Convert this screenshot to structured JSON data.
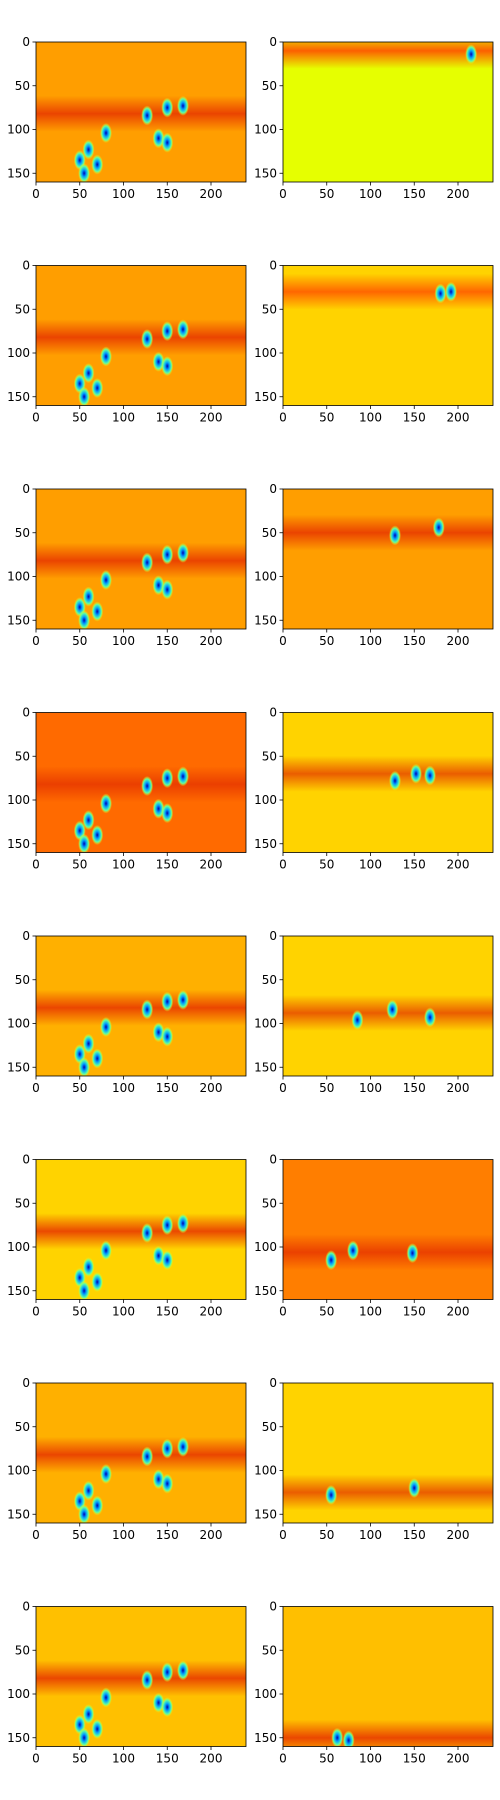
{
  "figure": {
    "background": "#ffffff",
    "layout": {
      "rows": 8,
      "cols": 2
    }
  },
  "chart_data": [
    {
      "type": "heatmap",
      "row": 0,
      "col": 0,
      "x_range": [
        0,
        240
      ],
      "y_range": [
        0,
        160
      ],
      "y_inverted": true,
      "xticks": [
        0,
        50,
        100,
        150,
        200
      ],
      "yticks": [
        0,
        50,
        100,
        150
      ],
      "background_color": "#ff9e00",
      "band": {
        "y_center": 82,
        "color": "#e83a00"
      },
      "blobs": [
        [
          127,
          84
        ],
        [
          150,
          75
        ],
        [
          168,
          73
        ],
        [
          140,
          110
        ],
        [
          150,
          115
        ],
        [
          80,
          104
        ],
        [
          60,
          123
        ],
        [
          50,
          135
        ],
        [
          70,
          140
        ],
        [
          55,
          150
        ]
      ]
    },
    {
      "type": "heatmap",
      "row": 0,
      "col": 1,
      "x_range": [
        0,
        240
      ],
      "y_range": [
        0,
        160
      ],
      "y_inverted": true,
      "xticks": [
        0,
        50,
        100,
        150,
        200
      ],
      "yticks": [
        0,
        50,
        100,
        150
      ],
      "background_color": "#e6ff00",
      "band": {
        "y_center": 10,
        "color": "#ff4e00"
      },
      "blobs": [
        [
          215,
          14
        ]
      ]
    },
    {
      "type": "heatmap",
      "row": 1,
      "col": 0,
      "x_range": [
        0,
        240
      ],
      "y_range": [
        0,
        160
      ],
      "y_inverted": true,
      "xticks": [
        0,
        50,
        100,
        150,
        200
      ],
      "yticks": [
        0,
        50,
        100,
        150
      ],
      "background_color": "#ff9e00",
      "band": {
        "y_center": 82,
        "color": "#e83a00"
      },
      "blobs": [
        [
          127,
          84
        ],
        [
          150,
          75
        ],
        [
          168,
          73
        ],
        [
          140,
          110
        ],
        [
          150,
          115
        ],
        [
          80,
          104
        ],
        [
          60,
          123
        ],
        [
          50,
          135
        ],
        [
          70,
          140
        ],
        [
          55,
          150
        ]
      ]
    },
    {
      "type": "heatmap",
      "row": 1,
      "col": 1,
      "x_range": [
        0,
        240
      ],
      "y_range": [
        0,
        160
      ],
      "y_inverted": true,
      "xticks": [
        0,
        50,
        100,
        150,
        200
      ],
      "yticks": [
        0,
        50,
        100,
        150
      ],
      "background_color": "#ffd300",
      "band": {
        "y_center": 30,
        "color": "#ff5a00"
      },
      "blobs": [
        [
          180,
          32
        ],
        [
          192,
          30
        ]
      ]
    },
    {
      "type": "heatmap",
      "row": 2,
      "col": 0,
      "x_range": [
        0,
        240
      ],
      "y_range": [
        0,
        160
      ],
      "y_inverted": true,
      "xticks": [
        0,
        50,
        100,
        150,
        200
      ],
      "yticks": [
        0,
        50,
        100,
        150
      ],
      "background_color": "#ff9e00",
      "band": {
        "y_center": 82,
        "color": "#e83a00"
      },
      "blobs": [
        [
          127,
          84
        ],
        [
          150,
          75
        ],
        [
          168,
          73
        ],
        [
          140,
          110
        ],
        [
          150,
          115
        ],
        [
          80,
          104
        ],
        [
          60,
          123
        ],
        [
          50,
          135
        ],
        [
          70,
          140
        ],
        [
          55,
          150
        ]
      ]
    },
    {
      "type": "heatmap",
      "row": 2,
      "col": 1,
      "x_range": [
        0,
        240
      ],
      "y_range": [
        0,
        160
      ],
      "y_inverted": true,
      "xticks": [
        0,
        50,
        100,
        150,
        200
      ],
      "yticks": [
        0,
        50,
        100,
        150
      ],
      "background_color": "#ff9e00",
      "band": {
        "y_center": 50,
        "color": "#e83a00"
      },
      "blobs": [
        [
          178,
          44
        ],
        [
          128,
          53
        ]
      ]
    },
    {
      "type": "heatmap",
      "row": 3,
      "col": 0,
      "x_range": [
        0,
        240
      ],
      "y_range": [
        0,
        160
      ],
      "y_inverted": true,
      "xticks": [
        0,
        50,
        100,
        150,
        200
      ],
      "yticks": [
        0,
        50,
        100,
        150
      ],
      "background_color": "#ff6a00",
      "band": {
        "y_center": 82,
        "color": "#e83a00"
      },
      "blobs": [
        [
          127,
          84
        ],
        [
          150,
          75
        ],
        [
          168,
          73
        ],
        [
          140,
          110
        ],
        [
          150,
          115
        ],
        [
          80,
          104
        ],
        [
          60,
          123
        ],
        [
          50,
          135
        ],
        [
          70,
          140
        ],
        [
          55,
          150
        ]
      ]
    },
    {
      "type": "heatmap",
      "row": 3,
      "col": 1,
      "x_range": [
        0,
        240
      ],
      "y_range": [
        0,
        160
      ],
      "y_inverted": true,
      "xticks": [
        0,
        50,
        100,
        150,
        200
      ],
      "yticks": [
        0,
        50,
        100,
        150
      ],
      "background_color": "#ffd300",
      "band": {
        "y_center": 70,
        "color": "#e85000"
      },
      "blobs": [
        [
          152,
          70
        ],
        [
          168,
          72
        ],
        [
          128,
          78
        ]
      ]
    },
    {
      "type": "heatmap",
      "row": 4,
      "col": 0,
      "x_range": [
        0,
        240
      ],
      "y_range": [
        0,
        160
      ],
      "y_inverted": true,
      "xticks": [
        0,
        50,
        100,
        150,
        200
      ],
      "yticks": [
        0,
        50,
        100,
        150
      ],
      "background_color": "#ffb000",
      "band": {
        "y_center": 82,
        "color": "#e83a00"
      },
      "blobs": [
        [
          127,
          84
        ],
        [
          150,
          75
        ],
        [
          168,
          73
        ],
        [
          140,
          110
        ],
        [
          150,
          115
        ],
        [
          80,
          104
        ],
        [
          60,
          123
        ],
        [
          50,
          135
        ],
        [
          70,
          140
        ],
        [
          55,
          150
        ]
      ]
    },
    {
      "type": "heatmap",
      "row": 4,
      "col": 1,
      "x_range": [
        0,
        240
      ],
      "y_range": [
        0,
        160
      ],
      "y_inverted": true,
      "xticks": [
        0,
        50,
        100,
        150,
        200
      ],
      "yticks": [
        0,
        50,
        100,
        150
      ],
      "background_color": "#ffd300",
      "band": {
        "y_center": 88,
        "color": "#e85000"
      },
      "blobs": [
        [
          125,
          84
        ],
        [
          168,
          93
        ],
        [
          85,
          96
        ]
      ]
    },
    {
      "type": "heatmap",
      "row": 5,
      "col": 0,
      "x_range": [
        0,
        240
      ],
      "y_range": [
        0,
        160
      ],
      "y_inverted": true,
      "xticks": [
        0,
        50,
        100,
        150,
        200
      ],
      "yticks": [
        0,
        50,
        100,
        150
      ],
      "background_color": "#ffd300",
      "band": {
        "y_center": 82,
        "color": "#e83a00"
      },
      "blobs": [
        [
          127,
          84
        ],
        [
          150,
          75
        ],
        [
          168,
          73
        ],
        [
          140,
          110
        ],
        [
          150,
          115
        ],
        [
          80,
          104
        ],
        [
          60,
          123
        ],
        [
          50,
          135
        ],
        [
          70,
          140
        ],
        [
          55,
          150
        ]
      ]
    },
    {
      "type": "heatmap",
      "row": 5,
      "col": 1,
      "x_range": [
        0,
        240
      ],
      "y_range": [
        0,
        160
      ],
      "y_inverted": true,
      "xticks": [
        0,
        50,
        100,
        150,
        200
      ],
      "yticks": [
        0,
        50,
        100,
        150
      ],
      "background_color": "#ff7e00",
      "band": {
        "y_center": 106,
        "color": "#e83a00"
      },
      "blobs": [
        [
          148,
          107
        ],
        [
          80,
          104
        ],
        [
          55,
          115
        ]
      ]
    },
    {
      "type": "heatmap",
      "row": 6,
      "col": 0,
      "x_range": [
        0,
        240
      ],
      "y_range": [
        0,
        160
      ],
      "y_inverted": true,
      "xticks": [
        0,
        50,
        100,
        150,
        200
      ],
      "yticks": [
        0,
        50,
        100,
        150
      ],
      "background_color": "#ffb000",
      "band": {
        "y_center": 82,
        "color": "#e83a00"
      },
      "blobs": [
        [
          127,
          84
        ],
        [
          150,
          75
        ],
        [
          168,
          73
        ],
        [
          140,
          110
        ],
        [
          150,
          115
        ],
        [
          80,
          104
        ],
        [
          60,
          123
        ],
        [
          50,
          135
        ],
        [
          70,
          140
        ],
        [
          55,
          150
        ]
      ]
    },
    {
      "type": "heatmap",
      "row": 6,
      "col": 1,
      "x_range": [
        0,
        240
      ],
      "y_range": [
        0,
        160
      ],
      "y_inverted": true,
      "xticks": [
        0,
        50,
        100,
        150,
        200
      ],
      "yticks": [
        0,
        50,
        100,
        150
      ],
      "background_color": "#ffd300",
      "band": {
        "y_center": 125,
        "color": "#e85000"
      },
      "blobs": [
        [
          55,
          128
        ],
        [
          150,
          120
        ]
      ]
    },
    {
      "type": "heatmap",
      "row": 7,
      "col": 0,
      "x_range": [
        0,
        240
      ],
      "y_range": [
        0,
        160
      ],
      "y_inverted": true,
      "xticks": [
        0,
        50,
        100,
        150,
        200
      ],
      "yticks": [
        0,
        50,
        100,
        150
      ],
      "background_color": "#ffc000",
      "band": {
        "y_center": 82,
        "color": "#e83a00"
      },
      "blobs": [
        [
          127,
          84
        ],
        [
          150,
          75
        ],
        [
          168,
          73
        ],
        [
          140,
          110
        ],
        [
          150,
          115
        ],
        [
          80,
          104
        ],
        [
          60,
          123
        ],
        [
          50,
          135
        ],
        [
          70,
          140
        ],
        [
          55,
          150
        ]
      ]
    },
    {
      "type": "heatmap",
      "row": 7,
      "col": 1,
      "x_range": [
        0,
        240
      ],
      "y_range": [
        0,
        160
      ],
      "y_inverted": true,
      "xticks": [
        0,
        50,
        100,
        150,
        200
      ],
      "yticks": [
        0,
        50,
        100,
        150
      ],
      "background_color": "#ffbf00",
      "band": {
        "y_center": 150,
        "color": "#e83a00"
      },
      "blobs": [
        [
          62,
          150
        ],
        [
          75,
          153
        ]
      ]
    }
  ]
}
